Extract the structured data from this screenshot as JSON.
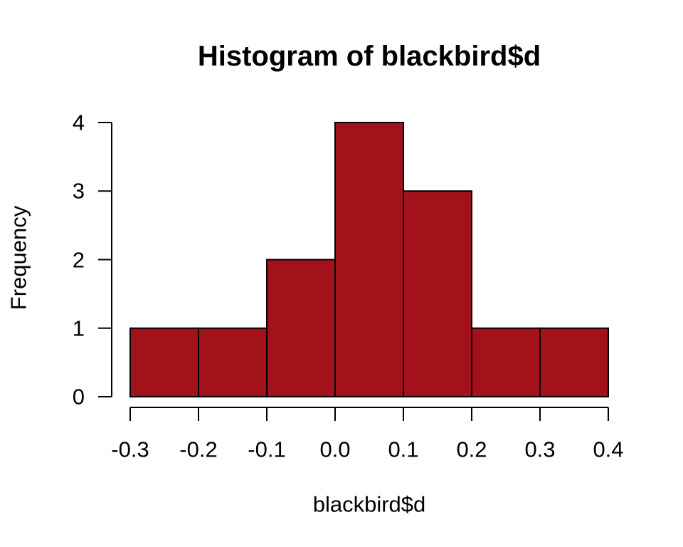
{
  "chart_data": {
    "type": "bar",
    "subtype": "histogram",
    "title": "Histogram of blackbird$d",
    "xlabel": "blackbird$d",
    "ylabel": "Frequency",
    "breaks": [
      -0.3,
      -0.2,
      -0.1,
      0.0,
      0.1,
      0.2,
      0.3,
      0.4
    ],
    "frequencies": [
      1,
      1,
      2,
      4,
      3,
      1,
      1
    ],
    "x_tick_labels": [
      "-0.3",
      "-0.2",
      "-0.1",
      "0.0",
      "0.1",
      "0.2",
      "0.3",
      "0.4"
    ],
    "y_tick_labels": [
      "0",
      "1",
      "2",
      "3",
      "4"
    ],
    "xlim": [
      -0.3,
      0.4
    ],
    "ylim": [
      0,
      4
    ],
    "grid": false,
    "legend": null,
    "colors": {
      "bar_fill": "#A3121B",
      "bar_border": "#000000",
      "axis": "#000000",
      "text": "#000000",
      "background": "#FFFFFF"
    }
  }
}
